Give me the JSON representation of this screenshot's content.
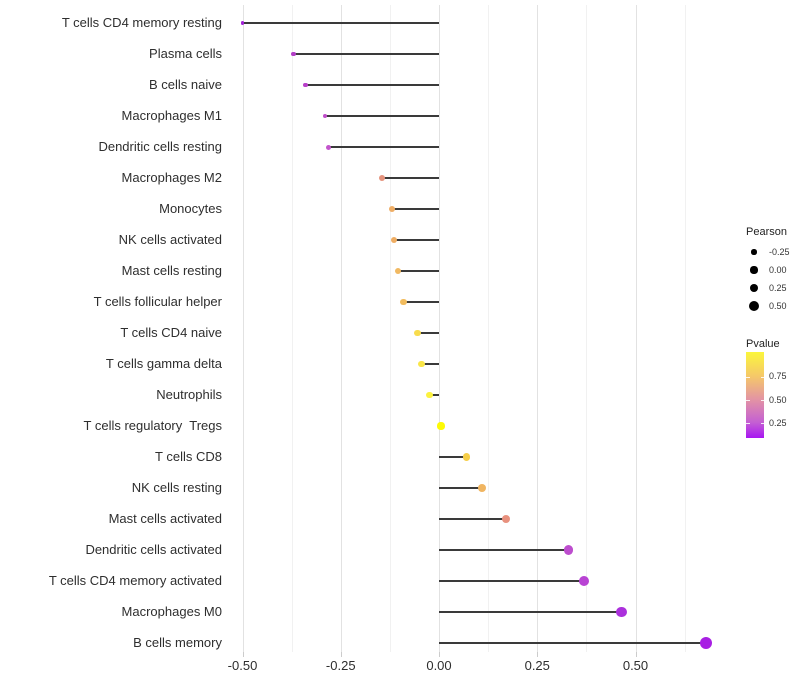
{
  "chart_data": {
    "type": "lollipop",
    "title": "",
    "xlabel": "",
    "ylabel": "",
    "x_tick_values": [
      -0.5,
      -0.25,
      0.0,
      0.25,
      0.5
    ],
    "x_tick_labels": [
      "-0.50",
      "-0.25",
      "0.00",
      "0.25",
      "0.50"
    ],
    "x_minor_tick_values": [
      -0.375,
      -0.125,
      0.125,
      0.375,
      0.625
    ],
    "xlim": [
      -0.54,
      0.71
    ],
    "grid": "vertical-only",
    "stem_color": "#3a3a3a",
    "categories": [
      "T cells CD4 memory resting",
      "Plasma cells",
      "B cells naive",
      "Macrophages M1",
      "Dendritic cells resting",
      "Macrophages M2",
      "Monocytes",
      "NK cells activated",
      "Mast cells resting",
      "T cells follicular helper",
      "T cells CD4 naive",
      "T cells gamma delta",
      "Neutrophils",
      "T cells regulatory  Tregs",
      "T cells CD8",
      "NK cells resting",
      "Mast cells activated",
      "Dendritic cells activated",
      "T cells CD4 memory activated",
      "Macrophages M0",
      "B cells memory"
    ],
    "pearson": [
      -0.5,
      -0.37,
      -0.34,
      -0.29,
      -0.28,
      -0.145,
      -0.12,
      -0.115,
      -0.105,
      -0.09,
      -0.055,
      -0.045,
      -0.025,
      0.005,
      0.07,
      0.11,
      0.17,
      0.33,
      0.37,
      0.465,
      0.68
    ],
    "pvalue_dot_colors": [
      "#A322D8",
      "#B23EC6",
      "#B840C9",
      "#C14ECB",
      "#C355CC",
      "#E5947E",
      "#EFAE66",
      "#EFAD63",
      "#F1B962",
      "#F2BC5E",
      "#F8DC4D",
      "#FAE648",
      "#FCF23E",
      "#FDFA05",
      "#F6CE48",
      "#F0B561",
      "#E8917E",
      "#BD4DCE",
      "#B843D3",
      "#AB30DC",
      "#A81FE3"
    ],
    "legend": {
      "size": {
        "title": "Pearson",
        "labels": [
          "-0.25",
          "0.00",
          "0.25",
          "0.50"
        ],
        "values": [
          -0.25,
          0.0,
          0.25,
          0.5
        ],
        "dot_color": "#000000"
      },
      "color": {
        "title": "Pvalue",
        "tick_labels": [
          "0.75",
          "0.50",
          "0.25"
        ],
        "gradient_top_to_bottom": [
          "#FBF63C",
          "#F5C869",
          "#E394A4",
          "#C45FD3",
          "#A816F2"
        ]
      }
    }
  }
}
